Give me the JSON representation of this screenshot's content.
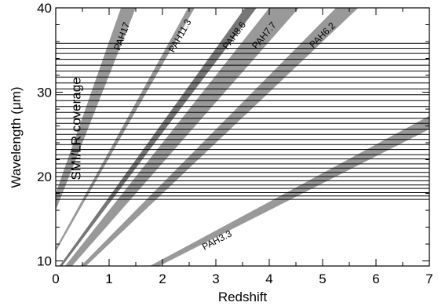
{
  "chart_data": {
    "type": "area",
    "title": "",
    "xlabel": "Redshift",
    "ylabel": "Wavelength (μm)",
    "xlim": [
      0,
      7
    ],
    "ylim": [
      9.4,
      40
    ],
    "xticks": [
      0,
      1,
      2,
      3,
      4,
      5,
      6,
      7
    ],
    "yticks": [
      10,
      20,
      30,
      40
    ],
    "grid": false,
    "legend": "none",
    "colors": {
      "band": "#999999",
      "band_dark": "#777777",
      "coverage_lines": "#000000",
      "axes": "#000000"
    },
    "coverage": {
      "label": "SMI/LR coverage",
      "wavelengths": [
        17.3,
        17.7,
        18.1,
        18.6,
        19.0,
        19.5,
        20.0,
        20.5,
        21.0,
        21.5,
        22.1,
        22.6,
        23.2,
        23.8,
        24.4,
        25.0,
        25.6,
        26.3,
        26.9,
        27.6,
        28.3,
        29.0,
        29.7,
        30.4,
        31.1,
        31.8,
        32.5,
        33.2,
        33.9,
        34.6,
        35.2,
        35.8
      ]
    },
    "series": [
      {
        "name": "PAH3.3",
        "rest_min": 3.2,
        "rest_max": 3.4
      },
      {
        "name": "PAH6.2",
        "rest_min": 6.0,
        "rest_max": 6.4
      },
      {
        "name": "PAH7.7",
        "rest_min": 7.2,
        "rest_max": 8.0
      },
      {
        "name": "PAH8.6",
        "rest_min": 8.4,
        "rest_max": 8.8
      },
      {
        "name": "PAH11.3",
        "rest_min": 11.1,
        "rest_max": 11.5
      },
      {
        "name": "PAH17",
        "rest_min": 16.0,
        "rest_max": 18.0
      }
    ]
  }
}
